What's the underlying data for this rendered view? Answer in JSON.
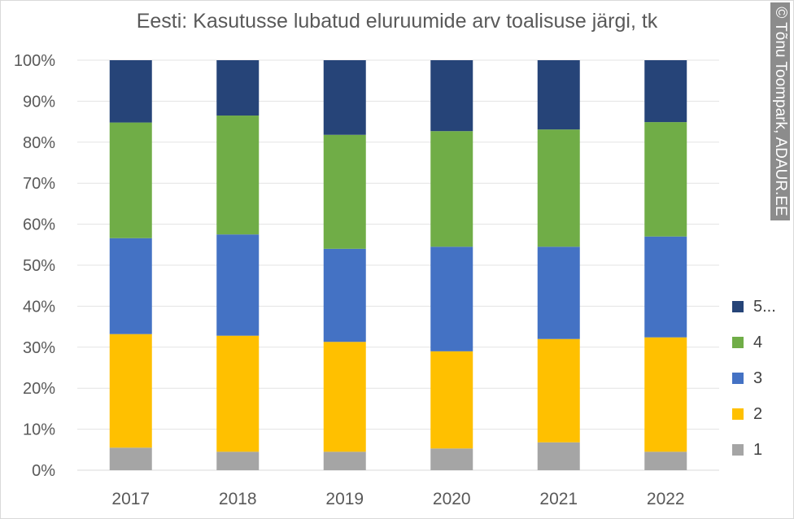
{
  "chart_data": {
    "type": "bar",
    "stacked": true,
    "percent": true,
    "title": "Eesti: Kasutusse lubatud eluruumide arv toalisuse järgi, tk",
    "categories": [
      "2017",
      "2018",
      "2019",
      "2020",
      "2021",
      "2022"
    ],
    "series": [
      {
        "name": "1",
        "color": "#a5a5a5",
        "values": [
          5.5,
          4.5,
          4.5,
          5.3,
          6.8,
          4.5
        ]
      },
      {
        "name": "2",
        "color": "#ffc000",
        "values": [
          27.7,
          28.3,
          26.8,
          23.7,
          25.2,
          27.9
        ]
      },
      {
        "name": "3",
        "color": "#4472c4",
        "values": [
          23.4,
          24.7,
          22.7,
          25.5,
          22.5,
          24.6
        ]
      },
      {
        "name": "4",
        "color": "#70ad47",
        "values": [
          28.2,
          29.0,
          27.8,
          28.2,
          28.6,
          27.9
        ]
      },
      {
        "name": "5...",
        "color": "#264478",
        "values": [
          15.2,
          13.5,
          18.2,
          17.3,
          16.9,
          15.1
        ]
      }
    ],
    "yticks": [
      "0%",
      "10%",
      "20%",
      "30%",
      "40%",
      "50%",
      "60%",
      "70%",
      "80%",
      "90%",
      "100%"
    ],
    "ylim": [
      0,
      100
    ],
    "grid": true,
    "legend": "right"
  },
  "watermark": "© Tõnu Toompark, ADAUR.EE"
}
